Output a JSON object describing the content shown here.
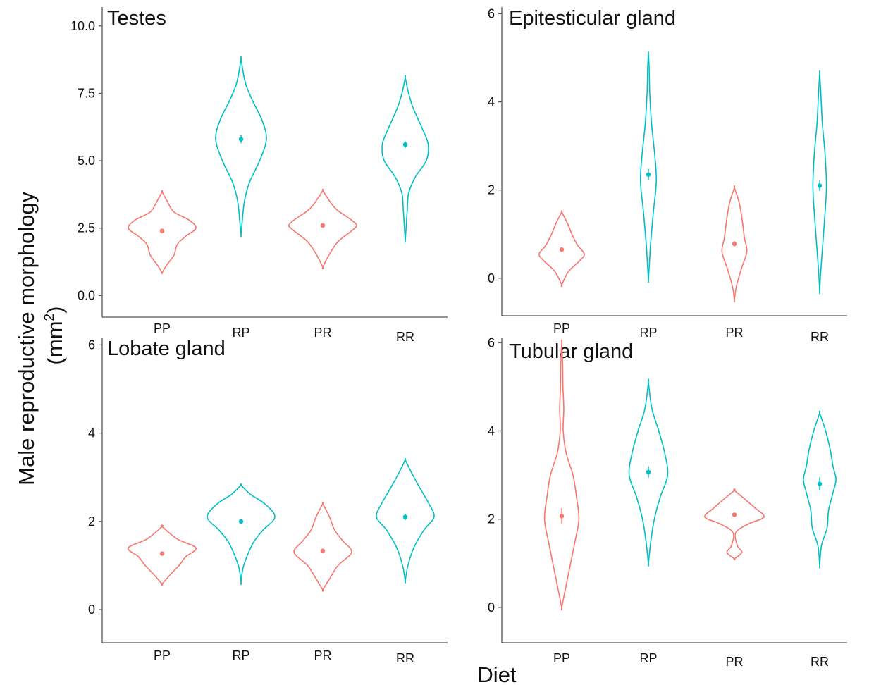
{
  "figure": {
    "ylabel_line1": "Male reproductive morphology",
    "ylabel_line2": "(mm",
    "ylabel_superscript": "2",
    "ylabel_close": ")",
    "xlabel": "Diet"
  },
  "colors": {
    "P": "#f8766d",
    "R": "#00bfc4",
    "axis": "#555555"
  },
  "chart_data": [
    {
      "type": "violin",
      "title": "Testes",
      "categories": [
        "PP",
        "RP",
        "PR",
        "RR"
      ],
      "ylim": [
        -0.8,
        10.7
      ],
      "yticks": [
        0.0,
        2.5,
        5.0,
        7.5,
        10.0
      ],
      "ytick_labels": [
        "0.0",
        "2.5",
        "5.0",
        "7.5",
        "10.0"
      ],
      "groups": [
        {
          "name": "PP",
          "diet_first": "P",
          "mean": 2.4,
          "se": 0.06,
          "profile": [
            [
              0.85,
              0.0
            ],
            [
              1.1,
              0.12
            ],
            [
              1.5,
              0.35
            ],
            [
              1.9,
              0.45
            ],
            [
              2.2,
              0.7
            ],
            [
              2.5,
              1.0
            ],
            [
              2.8,
              0.8
            ],
            [
              3.1,
              0.35
            ],
            [
              3.5,
              0.15
            ],
            [
              3.85,
              0.0
            ]
          ]
        },
        {
          "name": "RP",
          "diet_first": "R",
          "mean": 5.8,
          "se": 0.15,
          "profile": [
            [
              2.25,
              0.0
            ],
            [
              2.8,
              0.04
            ],
            [
              3.5,
              0.1
            ],
            [
              4.2,
              0.25
            ],
            [
              5.0,
              0.55
            ],
            [
              5.8,
              0.75
            ],
            [
              6.5,
              0.62
            ],
            [
              7.2,
              0.35
            ],
            [
              7.8,
              0.15
            ],
            [
              8.3,
              0.06
            ],
            [
              8.8,
              0.0
            ]
          ]
        },
        {
          "name": "PR",
          "diet_first": "P",
          "mean": 2.6,
          "se": 0.06,
          "profile": [
            [
              1.05,
              0.0
            ],
            [
              1.5,
              0.18
            ],
            [
              2.0,
              0.45
            ],
            [
              2.4,
              0.85
            ],
            [
              2.6,
              1.0
            ],
            [
              2.8,
              0.85
            ],
            [
              3.2,
              0.4
            ],
            [
              3.6,
              0.15
            ],
            [
              3.9,
              0.0
            ]
          ]
        },
        {
          "name": "RR",
          "diet_first": "R",
          "mean": 5.6,
          "se": 0.12,
          "profile": [
            [
              2.05,
              0.0
            ],
            [
              2.6,
              0.03
            ],
            [
              3.2,
              0.06
            ],
            [
              3.8,
              0.1
            ],
            [
              4.4,
              0.3
            ],
            [
              5.0,
              0.62
            ],
            [
              5.6,
              0.68
            ],
            [
              6.2,
              0.5
            ],
            [
              7.0,
              0.22
            ],
            [
              7.6,
              0.08
            ],
            [
              8.1,
              0.0
            ]
          ]
        }
      ]
    },
    {
      "type": "violin",
      "title": "Epitesticular gland",
      "categories": [
        "PP",
        "RP",
        "PR",
        "RR"
      ],
      "ylim": [
        -0.85,
        6.15
      ],
      "yticks": [
        0,
        2,
        4,
        6
      ],
      "ytick_labels": [
        "0",
        "2",
        "4",
        "6"
      ],
      "groups": [
        {
          "name": "PP",
          "diet_first": "P",
          "mean": 0.65,
          "se": 0.04,
          "profile": [
            [
              -0.15,
              0.0
            ],
            [
              0.15,
              0.3
            ],
            [
              0.4,
              0.8
            ],
            [
              0.55,
              1.0
            ],
            [
              0.75,
              0.7
            ],
            [
              1.0,
              0.45
            ],
            [
              1.25,
              0.25
            ],
            [
              1.5,
              0.0
            ]
          ]
        },
        {
          "name": "RP",
          "diet_first": "R",
          "mean": 2.35,
          "se": 0.13,
          "profile": [
            [
              -0.05,
              0.0
            ],
            [
              0.3,
              0.04
            ],
            [
              0.8,
              0.1
            ],
            [
              1.5,
              0.22
            ],
            [
              2.2,
              0.35
            ],
            [
              2.8,
              0.28
            ],
            [
              3.5,
              0.14
            ],
            [
              4.2,
              0.06
            ],
            [
              4.8,
              0.03
            ],
            [
              5.1,
              0.0
            ]
          ]
        },
        {
          "name": "PR",
          "diet_first": "P",
          "mean": 0.78,
          "se": 0.06,
          "profile": [
            [
              -0.5,
              0.0
            ],
            [
              -0.2,
              0.08
            ],
            [
              0.2,
              0.3
            ],
            [
              0.6,
              0.55
            ],
            [
              0.9,
              0.45
            ],
            [
              1.3,
              0.35
            ],
            [
              1.7,
              0.22
            ],
            [
              2.05,
              0.0
            ]
          ]
        },
        {
          "name": "RR",
          "diet_first": "R",
          "mean": 2.1,
          "se": 0.12,
          "profile": [
            [
              -0.3,
              0.0
            ],
            [
              0.1,
              0.04
            ],
            [
              0.8,
              0.14
            ],
            [
              1.5,
              0.24
            ],
            [
              2.1,
              0.3
            ],
            [
              2.8,
              0.24
            ],
            [
              3.5,
              0.12
            ],
            [
              4.2,
              0.05
            ],
            [
              4.65,
              0.0
            ]
          ]
        }
      ]
    },
    {
      "type": "violin",
      "title": "Lobate gland",
      "categories": [
        "PP",
        "RP",
        "PR",
        "RR"
      ],
      "ylim": [
        -0.75,
        6.15
      ],
      "yticks": [
        0,
        2,
        4,
        6
      ],
      "ytick_labels": [
        "0",
        "2",
        "4",
        "6"
      ],
      "groups": [
        {
          "name": "PP",
          "diet_first": "P",
          "mean": 1.27,
          "se": 0.03,
          "profile": [
            [
              0.58,
              0.0
            ],
            [
              0.8,
              0.25
            ],
            [
              1.0,
              0.5
            ],
            [
              1.2,
              0.7
            ],
            [
              1.4,
              1.0
            ],
            [
              1.6,
              0.45
            ],
            [
              1.88,
              0.0
            ]
          ]
        },
        {
          "name": "RP",
          "diet_first": "R",
          "mean": 2.0,
          "se": 0.04,
          "profile": [
            [
              0.62,
              0.0
            ],
            [
              1.0,
              0.08
            ],
            [
              1.5,
              0.35
            ],
            [
              1.8,
              0.65
            ],
            [
              2.1,
              1.0
            ],
            [
              2.4,
              0.7
            ],
            [
              2.6,
              0.3
            ],
            [
              2.82,
              0.0
            ]
          ]
        },
        {
          "name": "PR",
          "diet_first": "P",
          "mean": 1.33,
          "se": 0.05,
          "profile": [
            [
              0.45,
              0.0
            ],
            [
              0.7,
              0.2
            ],
            [
              1.0,
              0.45
            ],
            [
              1.3,
              0.85
            ],
            [
              1.55,
              0.6
            ],
            [
              1.8,
              0.35
            ],
            [
              2.1,
              0.2
            ],
            [
              2.4,
              0.0
            ]
          ]
        },
        {
          "name": "RR",
          "diet_first": "R",
          "mean": 2.1,
          "se": 0.07,
          "profile": [
            [
              0.65,
              0.0
            ],
            [
              1.0,
              0.08
            ],
            [
              1.4,
              0.25
            ],
            [
              1.8,
              0.55
            ],
            [
              2.1,
              0.85
            ],
            [
              2.4,
              0.7
            ],
            [
              2.8,
              0.4
            ],
            [
              3.2,
              0.12
            ],
            [
              3.4,
              0.0
            ]
          ]
        }
      ]
    },
    {
      "type": "violin",
      "title": "Tubular gland",
      "categories": [
        "PP",
        "RP",
        "PR",
        "RR"
      ],
      "ylim": [
        -0.8,
        6.1
      ],
      "yticks": [
        0,
        2,
        4,
        6
      ],
      "ytick_labels": [
        "0",
        "2",
        "4",
        "6"
      ],
      "groups": [
        {
          "name": "PP",
          "diet_first": "P",
          "mean": 2.07,
          "se": 0.18,
          "profile": [
            [
              0.0,
              0.0
            ],
            [
              0.5,
              0.15
            ],
            [
              1.0,
              0.3
            ],
            [
              1.5,
              0.45
            ],
            [
              2.0,
              0.58
            ],
            [
              2.5,
              0.5
            ],
            [
              3.0,
              0.38
            ],
            [
              3.5,
              0.15
            ],
            [
              4.0,
              0.05
            ],
            [
              4.5,
              0.07
            ],
            [
              5.0,
              0.04
            ],
            [
              5.5,
              0.03
            ],
            [
              6.0,
              0.0
            ]
          ]
        },
        {
          "name": "RP",
          "diet_first": "R",
          "mean": 3.07,
          "se": 0.13,
          "profile": [
            [
              1.0,
              0.0
            ],
            [
              1.5,
              0.08
            ],
            [
              2.0,
              0.2
            ],
            [
              2.5,
              0.4
            ],
            [
              3.0,
              0.65
            ],
            [
              3.5,
              0.55
            ],
            [
              4.0,
              0.35
            ],
            [
              4.5,
              0.12
            ],
            [
              5.1,
              0.0
            ]
          ]
        },
        {
          "name": "PR",
          "diet_first": "P",
          "mean": 2.1,
          "se": 0.04,
          "profile": [
            [
              1.1,
              0.0
            ],
            [
              1.25,
              0.25
            ],
            [
              1.4,
              0.1
            ],
            [
              1.7,
              0.05
            ],
            [
              1.9,
              0.5
            ],
            [
              2.05,
              1.0
            ],
            [
              2.25,
              0.7
            ],
            [
              2.4,
              0.45
            ],
            [
              2.65,
              0.0
            ]
          ]
        },
        {
          "name": "RR",
          "diet_first": "R",
          "mean": 2.8,
          "se": 0.15,
          "profile": [
            [
              0.95,
              0.0
            ],
            [
              1.4,
              0.06
            ],
            [
              1.8,
              0.25
            ],
            [
              2.2,
              0.3
            ],
            [
              2.6,
              0.45
            ],
            [
              2.9,
              0.55
            ],
            [
              3.2,
              0.45
            ],
            [
              3.6,
              0.35
            ],
            [
              4.0,
              0.2
            ],
            [
              4.4,
              0.0
            ]
          ]
        }
      ]
    }
  ]
}
